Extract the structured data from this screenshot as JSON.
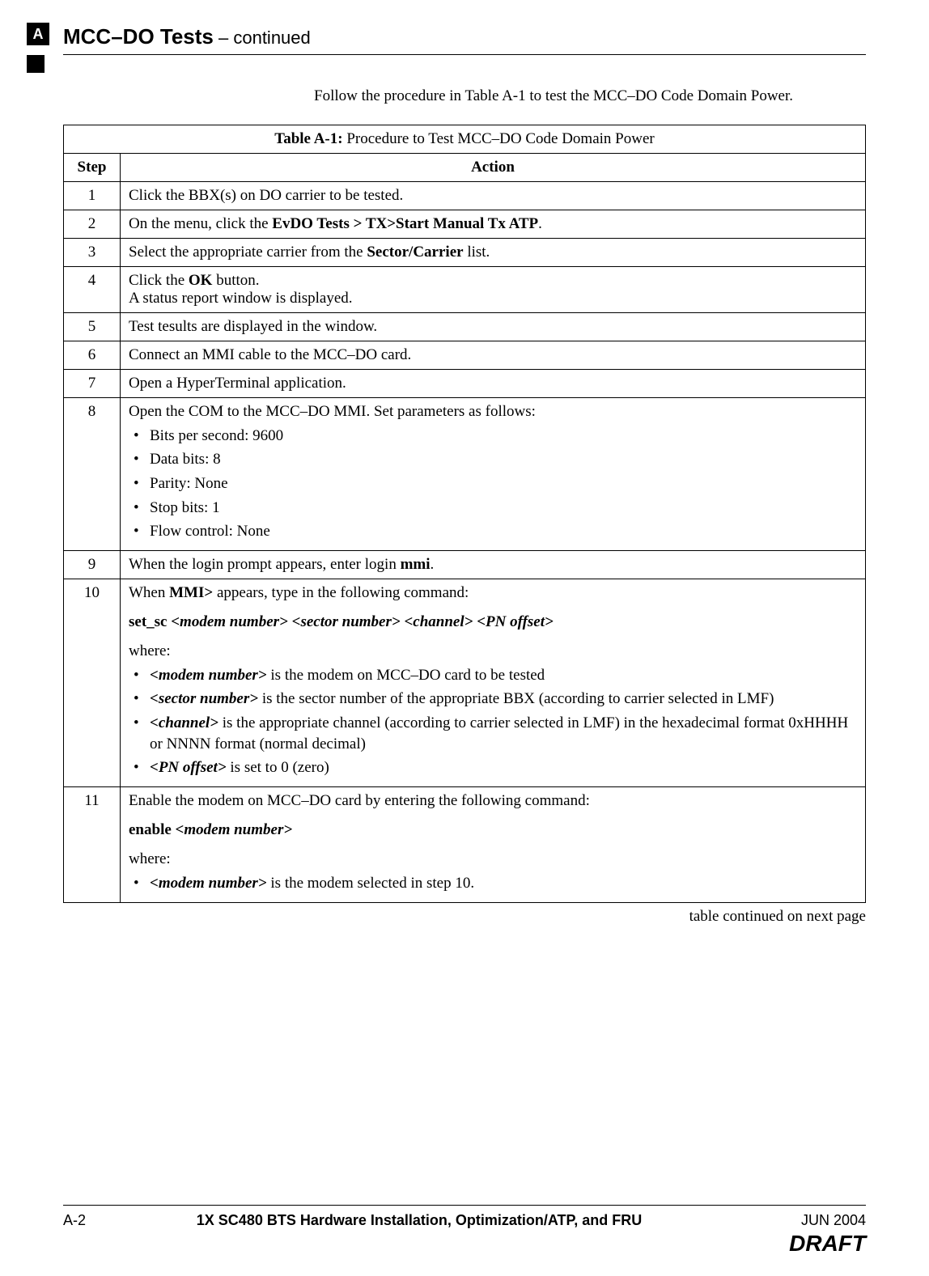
{
  "tab_letter": "A",
  "header": {
    "title_bold": "MCC–DO Tests",
    "title_rest": " – continued"
  },
  "intro": "Follow the procedure in Table A-1 to test the MCC–DO Code Domain Power.",
  "table": {
    "caption_prefix": "Table A-1:",
    "caption_rest": " Procedure to Test MCC–DO Code Domain Power",
    "col_step": "Step",
    "col_action": "Action",
    "r1_step": "1",
    "r1_action": "Click the BBX(s) on DO carrier to be tested.",
    "r2_step": "2",
    "r2_pre": "On the menu, click the ",
    "r2_bold": "EvDO Tests > TX>Start Manual Tx ATP",
    "r2_post": ".",
    "r3_step": "3",
    "r3_pre": "Select the appropriate carrier from the ",
    "r3_bold": "Sector/Carrier",
    "r3_post": " list.",
    "r4_step": "4",
    "r4_l1_pre": "Click the ",
    "r4_l1_bold": "OK",
    "r4_l1_post": " button.",
    "r4_l2": "A status report window is displayed.",
    "r5_step": "5",
    "r5_action": "Test tesults are displayed in the window.",
    "r6_step": "6",
    "r6_action": "Connect an MMI cable to the MCC–DO card.",
    "r7_step": "7",
    "r7_action": "Open a HyperTerminal application.",
    "r8_step": "8",
    "r8_lead": "Open the COM to the MCC–DO MMI. Set parameters as follows:",
    "r8_b1": "Bits per second:  9600",
    "r8_b2": "Data bits:  8",
    "r8_b3": "Parity:  None",
    "r8_b4": "Stop bits:  1",
    "r8_b5": "Flow control:  None",
    "r9_step": "9",
    "r9_pre": "When the login prompt appears, enter login ",
    "r9_bold": "mmi",
    "r9_post": ".",
    "r10_step": "10",
    "r10_l1_pre": "When ",
    "r10_l1_bold": "MMI>",
    "r10_l1_post": " appears, type in the following command:",
    "r10_cmd_b1": "set_sc ",
    "r10_cmd_bi1": "<modem number>",
    "r10_cmd_sp1": " ",
    "r10_cmd_bi2": "<sector number>",
    "r10_cmd_sp2": " ",
    "r10_cmd_bi3": "<channel>",
    "r10_cmd_sp3": " ",
    "r10_cmd_bi4": "<PN offset>",
    "r10_where": "where:",
    "r10_li1_bi": "<modem number>",
    "r10_li1_txt": " is the modem on MCC–DO card to be tested",
    "r10_li2_bi": "<sector number>",
    "r10_li2_txt": " is the sector number of the appropriate BBX (according to carrier selected in LMF)",
    "r10_li3_bi": "<channel>",
    "r10_li3_txt": " is the appropriate channel (according to carrier selected in LMF) in the hexadecimal format 0xHHHH or NNNN format (normal decimal)",
    "r10_li4_bi": "<PN offset>",
    "r10_li4_txt": " is set to 0 (zero)",
    "r11_step": "11",
    "r11_lead": "Enable the modem on MCC–DO card by entering the following command:",
    "r11_cmd_b": "enable ",
    "r11_cmd_bi": "<modem number>",
    "r11_where": "where:",
    "r11_li1_bi": "<modem number>",
    "r11_li1_txt": " is the modem selected in step 10."
  },
  "cont_note": "table continued on next page",
  "footer": {
    "left": "A-2",
    "center": "1X SC480 BTS Hardware Installation, Optimization/ATP, and FRU",
    "right": "JUN 2004",
    "draft": "DRAFT"
  }
}
